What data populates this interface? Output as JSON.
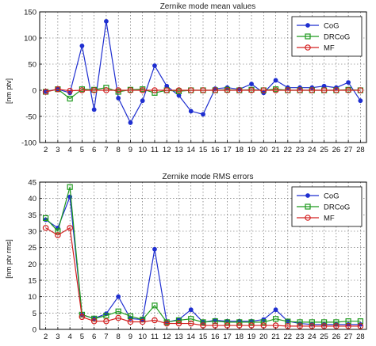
{
  "chart_data": [
    {
      "type": "line",
      "title": "Zernike mode mean values",
      "xlabel": "",
      "ylabel": "[nm ptv]",
      "x": [
        2,
        3,
        4,
        5,
        6,
        7,
        8,
        9,
        10,
        11,
        12,
        13,
        14,
        15,
        16,
        17,
        18,
        19,
        20,
        21,
        22,
        23,
        24,
        25,
        26,
        27,
        28
      ],
      "xticks": [
        "2",
        "3",
        "4",
        "5",
        "6",
        "7",
        "8",
        "9",
        "10",
        "11",
        "12",
        "13",
        "14",
        "15",
        "16",
        "17",
        "18",
        "19",
        "20",
        "21",
        "22",
        "23",
        "24",
        "25",
        "26",
        "27",
        "28"
      ],
      "xlim": [
        1.5,
        28.5
      ],
      "ylim": [
        -100,
        150
      ],
      "yticks": [
        -100,
        -50,
        0,
        50,
        100,
        150
      ],
      "grid": true,
      "legend_position": "top-right",
      "series": [
        {
          "name": "CoG",
          "color": "#1f2fd0",
          "marker": "dot",
          "values": [
            -2,
            2,
            -5,
            85,
            -37,
            132,
            -15,
            -62,
            -20,
            47,
            8,
            -10,
            -40,
            -46,
            3,
            5,
            2,
            12,
            -5,
            19,
            5,
            5,
            5,
            8,
            5,
            15,
            -20
          ]
        },
        {
          "name": "DRCoG",
          "color": "#1e9a1e",
          "marker": "square",
          "values": [
            -3,
            2,
            -16,
            2,
            1,
            5,
            -3,
            1,
            2,
            -5,
            0,
            -2,
            0,
            0,
            0,
            1,
            0,
            1,
            0,
            2,
            0,
            0,
            0,
            0,
            0,
            1,
            0
          ]
        },
        {
          "name": "MF",
          "color": "#d42020",
          "marker": "circle",
          "values": [
            -3,
            2,
            -1,
            0,
            0,
            0,
            0,
            0,
            0,
            0,
            0,
            0,
            0,
            0,
            0,
            0,
            0,
            0,
            0,
            0,
            0,
            0,
            0,
            0,
            0,
            0,
            0
          ]
        }
      ]
    },
    {
      "type": "line",
      "title": "Zernike mode RMS errors",
      "xlabel": "",
      "ylabel": "[nm ptv rms]",
      "x": [
        2,
        3,
        4,
        5,
        6,
        7,
        8,
        9,
        10,
        11,
        12,
        13,
        14,
        15,
        16,
        17,
        18,
        19,
        20,
        21,
        22,
        23,
        24,
        25,
        26,
        27,
        28
      ],
      "xticks": [
        "2",
        "3",
        "4",
        "5",
        "6",
        "7",
        "8",
        "9",
        "10",
        "11",
        "12",
        "13",
        "14",
        "15",
        "16",
        "17",
        "18",
        "19",
        "20",
        "21",
        "22",
        "23",
        "24",
        "25",
        "26",
        "27",
        "28"
      ],
      "xlim": [
        1.5,
        28.5
      ],
      "ylim": [
        0,
        45
      ],
      "yticks": [
        0,
        5,
        10,
        15,
        20,
        25,
        30,
        35,
        40,
        45
      ],
      "grid": true,
      "legend_position": "top-right",
      "series": [
        {
          "name": "CoG",
          "color": "#1f2fd0",
          "marker": "dot",
          "values": [
            33.5,
            31,
            40.5,
            4.5,
            3.3,
            4.8,
            10,
            3.3,
            3,
            24.5,
            2.2,
            3,
            6,
            2.2,
            2.8,
            2.5,
            2.5,
            2.5,
            3,
            6,
            2.5,
            1.8,
            1.5,
            1.5,
            1.5,
            1.5,
            1.5
          ]
        },
        {
          "name": "DRCoG",
          "color": "#1e9a1e",
          "marker": "square",
          "values": [
            34,
            30,
            43.5,
            4.5,
            3.3,
            4.2,
            5.5,
            4,
            3,
            7.3,
            2.2,
            2.8,
            3.2,
            2.2,
            2.5,
            2.2,
            2.2,
            2.2,
            2.2,
            3.2,
            2.4,
            2.2,
            2.2,
            2.2,
            2.2,
            2.5,
            2.5
          ]
        },
        {
          "name": "MF",
          "color": "#d42020",
          "marker": "circle",
          "values": [
            31,
            28.8,
            31,
            3.8,
            2.5,
            2.5,
            3.5,
            2.3,
            2.3,
            2.8,
            1.8,
            1.8,
            1.8,
            1.2,
            1.2,
            1.2,
            1.2,
            1.2,
            1.2,
            1.2,
            1,
            1,
            1,
            1,
            1,
            1,
            1
          ]
        }
      ]
    }
  ]
}
